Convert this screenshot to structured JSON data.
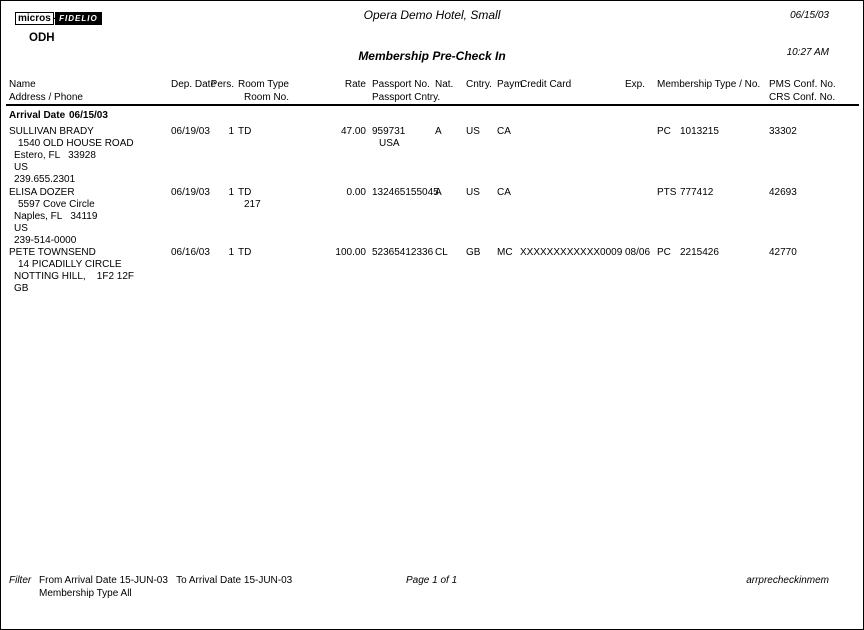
{
  "page": {
    "logo_micros": "micros",
    "logo_hyphen": "-",
    "logo_fidelio": "FIDELIO",
    "property_code": "ODH",
    "hotel_name": "Opera Demo Hotel, Small",
    "report_title": "Membership Pre-Check In",
    "print_date": "06/15/03",
    "print_time": "10:27 AM"
  },
  "columns": {
    "name": "Name",
    "address_phone": "Address / Phone",
    "dep_date": "Dep. Date",
    "pers": "Pers.",
    "room_type": "Room Type",
    "room_no": "Room No.",
    "rate": "Rate",
    "passport_no": "Passport No.",
    "passport_cntry": "Passport Cntry.",
    "nat": "Nat.",
    "cntry": "Cntry.",
    "paym": "Paym.",
    "credit_card": "Credit Card",
    "exp": "Exp.",
    "membership": "Membership Type / No.",
    "pms_conf": "PMS Conf. No.",
    "crs_conf": "CRS Conf. No."
  },
  "group": {
    "label": "Arrival Date",
    "date": "06/15/03"
  },
  "guests": [
    {
      "name": "SULLIVAN BRADY",
      "address_lines": [
        "1540 OLD HOUSE ROAD",
        "Estero, FL   33928",
        "US",
        "239.655.2301"
      ],
      "dep_date": "06/19/03",
      "pers": "1",
      "room_type": "TD",
      "room_no": "",
      "rate": "47.00",
      "passport_no": "959731",
      "passport_cntry": "USA",
      "nat": "A",
      "cntry": "US",
      "paym": "CA",
      "credit_card": "",
      "exp": "",
      "membership_type": "PC",
      "membership_no": "1013215",
      "pms_conf_no": "33302"
    },
    {
      "name": "ELISA DOZER",
      "address_lines": [
        "5597 Cove Circle",
        "Naples, FL   34119",
        "US",
        "239-514-0000"
      ],
      "dep_date": "06/19/03",
      "pers": "1",
      "room_type": "TD",
      "room_no": "217",
      "rate": "0.00",
      "passport_no": "132465155045",
      "passport_cntry": "",
      "nat": "A",
      "cntry": "US",
      "paym": "CA",
      "credit_card": "",
      "exp": "",
      "membership_type": "PTS",
      "membership_no": "777412",
      "pms_conf_no": "42693"
    },
    {
      "name": "PETE TOWNSEND",
      "address_lines": [
        "14 PICADILLY CIRCLE",
        "NOTTING HILL,    1F2 12F",
        "GB"
      ],
      "dep_date": "06/16/03",
      "pers": "1",
      "room_type": "TD",
      "room_no": "",
      "rate": "100.00",
      "passport_no": "52365412336",
      "passport_cntry": "",
      "nat": "CL",
      "cntry": "GB",
      "paym": "MC",
      "credit_card": "XXXXXXXXXXXX0009",
      "exp": "08/06",
      "membership_type": "PC",
      "membership_no": "2215426",
      "pms_conf_no": "42770"
    }
  ],
  "footer": {
    "filter_label": "Filter",
    "filter_line1": "From Arrival Date 15-JUN-03   To Arrival Date 15-JUN-03",
    "filter_line2": "Membership Type All",
    "page_indicator": "Page 1 of 1",
    "report_id": "arrprecheckinmem"
  }
}
